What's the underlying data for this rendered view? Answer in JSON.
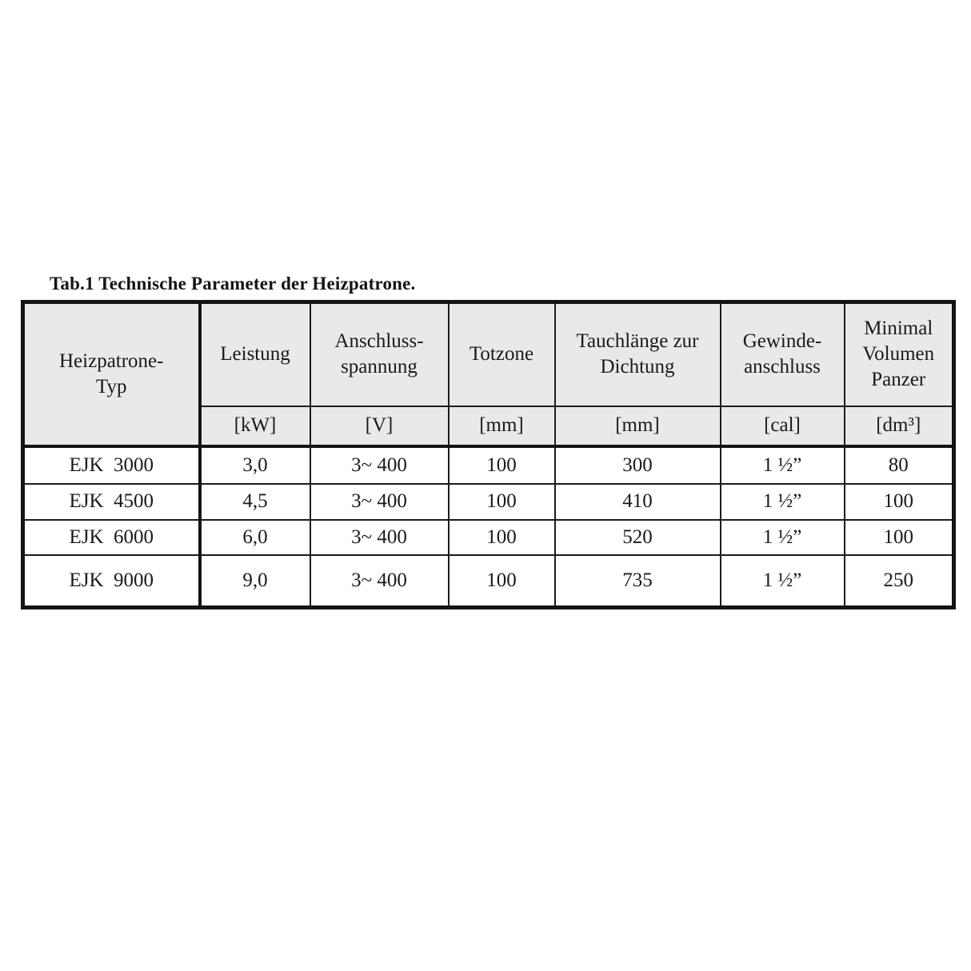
{
  "page": {
    "background": "#ffffff",
    "header_bg": "#e9e9e9",
    "border_color": "#141414",
    "text_color": "#1a1a1a"
  },
  "title": "Tab.1 Technische Parameter der Heizpatrone.",
  "table": {
    "columns": [
      {
        "label": "Heizpatrone-\nTyp",
        "unit": ""
      },
      {
        "label": "Leistung",
        "unit": "[kW]"
      },
      {
        "label": "Anschluss-\nspannung",
        "unit": "[V]"
      },
      {
        "label": "Totzone",
        "unit": "[mm]"
      },
      {
        "label": "Tauchlänge zur\nDichtung",
        "unit": "[mm]"
      },
      {
        "label": "Gewinde-\nanschluss",
        "unit": "[cal]"
      },
      {
        "label": "Minimal\nVolumen\nPanzer",
        "unit": "[dm³]"
      }
    ],
    "rows": [
      {
        "cells": [
          "EJK  3000",
          "3,0",
          "3~ 400",
          "100",
          "300",
          "1 ½”",
          "80"
        ]
      },
      {
        "cells": [
          "EJK  4500",
          "4,5",
          "3~ 400",
          "100",
          "410",
          "1 ½”",
          "100"
        ]
      },
      {
        "cells": [
          "EJK  6000",
          "6,0",
          "3~ 400",
          "100",
          "520",
          "1 ½”",
          "100"
        ]
      },
      {
        "cells": [
          "EJK  9000",
          "9,0",
          "3~ 400",
          "100",
          "735",
          "1 ½”",
          "250"
        ]
      }
    ]
  }
}
